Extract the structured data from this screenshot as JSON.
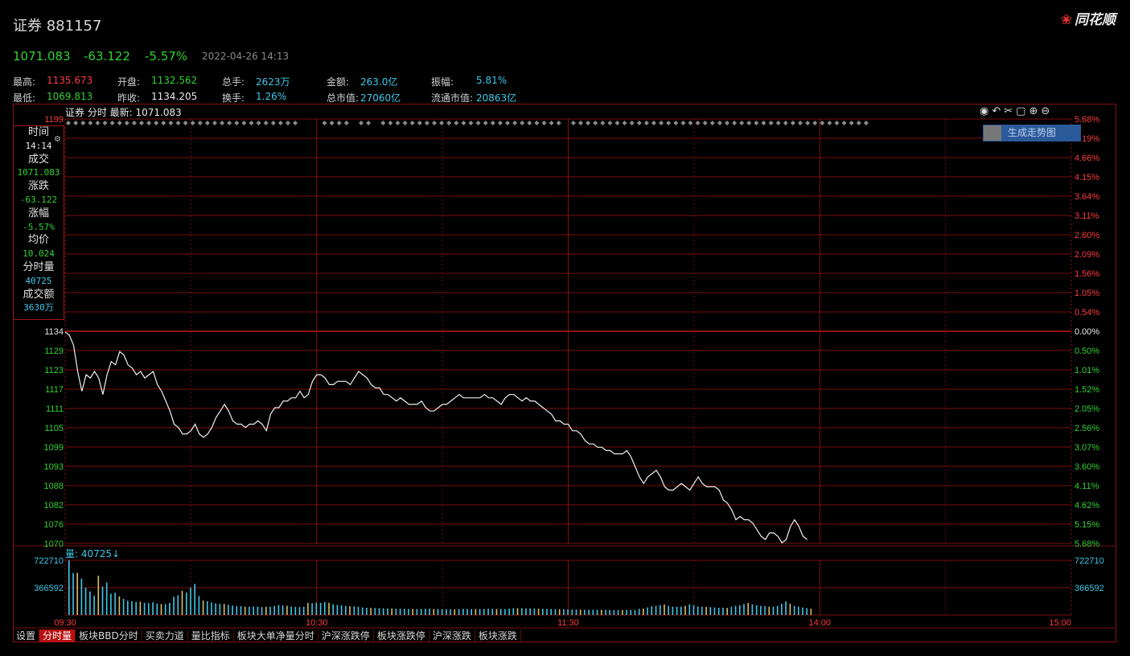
{
  "header": {
    "title": "证券 881157",
    "brand": "同花顺",
    "brand_icon": "flower-logo-icon"
  },
  "quote": {
    "price": "1071.083",
    "change": "-63.122",
    "pct": "-5.57%",
    "datetime": "2022-04-26 14:13"
  },
  "stats": [
    {
      "label": "最高:",
      "value": "1135.673",
      "color": "#ff3b3b"
    },
    {
      "label": "开盘:",
      "value": "1132.562",
      "color": "#32d232"
    },
    {
      "label": "总手:",
      "value": "2623万",
      "color": "#3ec8e8"
    },
    {
      "label": "金额:",
      "value": "263.0亿",
      "color": "#3ec8e8"
    },
    {
      "label": "振幅:",
      "value": "5.81%",
      "color": "#3ec8e8"
    },
    {
      "label": "最低:",
      "value": "1069.813",
      "color": "#32d232"
    },
    {
      "label": "昨收:",
      "value": "1134.205",
      "color": "#e8e8e8"
    },
    {
      "label": "换手:",
      "value": "1.26%",
      "color": "#3ec8e8"
    },
    {
      "label": "总市值:",
      "value": "27060亿",
      "color": "#3ec8e8"
    },
    {
      "label": "流通市值:",
      "value": "20863亿",
      "color": "#3ec8e8"
    }
  ],
  "chart_caption": "证券 分时 最新: 1071.083",
  "gen_button": "生成走势图",
  "toolbar_icons": [
    "eye-icon",
    "undo-icon",
    "scissors-icon",
    "lock-icon",
    "zoom-in-icon",
    "zoom-out-icon"
  ],
  "infobox": [
    {
      "label": "时间",
      "value": "14:14",
      "color": "#e8e8e8"
    },
    {
      "label": "成交",
      "value": "1071.083",
      "color": "#32d232"
    },
    {
      "label": "涨跌",
      "value": "-63.122",
      "color": "#32d232"
    },
    {
      "label": "涨幅",
      "value": "-5.57%",
      "color": "#32d232"
    },
    {
      "label": "均价",
      "value": "10.024",
      "color": "#32d232"
    },
    {
      "label": "分时量",
      "value": "40725",
      "color": "#3ec8e8"
    },
    {
      "label": "成交额",
      "value": "3630万",
      "color": "#3ec8e8"
    }
  ],
  "volume_caption": "量: 40725↓",
  "tabs": [
    {
      "label": "设置",
      "active": false
    },
    {
      "label": "分时量",
      "active": true
    },
    {
      "label": "板块BBD分时",
      "active": false
    },
    {
      "label": "买卖力道",
      "active": false
    },
    {
      "label": "量比指标",
      "active": false
    },
    {
      "label": "板块大单净量分时",
      "active": false
    },
    {
      "label": "沪深涨跌停",
      "active": false
    },
    {
      "label": "板块涨跌停",
      "active": false
    },
    {
      "label": "沪深涨跌",
      "active": false
    },
    {
      "label": "板块涨跌",
      "active": false
    }
  ],
  "chart_data": {
    "type": "line",
    "prev_close": 1134.205,
    "price_left_ticks": [
      "1199",
      "1134",
      "1129",
      "1123",
      "1117",
      "1111",
      "1105",
      "1099",
      "1093",
      "1088",
      "1082",
      "1076",
      "1070"
    ],
    "pct_right_ticks": [
      "5.68%",
      "5.19%",
      "4.66%",
      "4.15%",
      "3.64%",
      "3.11%",
      "2.60%",
      "2.09%",
      "1.56%",
      "1.05%",
      "0.54%",
      "0.00%",
      "0.50%",
      "1.01%",
      "1.52%",
      "2.05%",
      "2.56%",
      "3.07%",
      "3.60%",
      "4.11%",
      "4.62%",
      "5.15%",
      "5.68%"
    ],
    "volume_ticks": [
      "722710",
      "366592"
    ],
    "time_ticks": [
      "09:30",
      "10:30",
      "11:30",
      "14:00",
      "15:00"
    ],
    "ylim": [
      1069.8,
      1134.2
    ],
    "series": [
      {
        "values": [
          1134,
          1133,
          1130,
          1122,
          1116,
          1121,
          1120,
          1122,
          1120,
          1115,
          1121,
          1125,
          1124,
          1128,
          1127,
          1124,
          1123,
          1121,
          1122,
          1120,
          1121,
          1122,
          1118,
          1116,
          1113,
          1110,
          1106,
          1105,
          1103,
          1103,
          1104,
          1106,
          1103,
          1102,
          1103,
          1105,
          1108,
          1110,
          1112,
          1110,
          1107,
          1106,
          1106,
          1105,
          1106,
          1106,
          1107,
          1106,
          1104,
          1109,
          1111,
          1111,
          1113,
          1113,
          1114,
          1114,
          1116,
          1114,
          1115,
          1119,
          1121,
          1121,
          1120,
          1118,
          1118,
          1119,
          1119,
          1119,
          1118,
          1120,
          1122,
          1121,
          1120,
          1118,
          1117,
          1117,
          1115,
          1115,
          1114,
          1113,
          1114,
          1113,
          1112,
          1112,
          1112,
          1113,
          1111,
          1110,
          1110,
          1111,
          1112,
          1112,
          1113,
          1114,
          1115,
          1114,
          1114,
          1114,
          1114,
          1114,
          1115,
          1114,
          1114,
          1113,
          1112,
          1114,
          1115,
          1115,
          1114,
          1113,
          1114,
          1113,
          1113,
          1112,
          1111,
          1110,
          1109,
          1107,
          1107,
          1106,
          1106,
          1104,
          1104,
          1103,
          1101,
          1100,
          1100,
          1099,
          1099,
          1098,
          1098,
          1097,
          1097,
          1097,
          1098,
          1096,
          1093,
          1090,
          1088,
          1090,
          1091,
          1092,
          1090,
          1087,
          1086,
          1086,
          1087,
          1088,
          1087,
          1086,
          1088,
          1090,
          1088,
          1087,
          1087,
          1087,
          1086,
          1083,
          1082,
          1080,
          1077,
          1078,
          1077,
          1077,
          1076,
          1074,
          1072,
          1071,
          1073,
          1073,
          1072,
          1070,
          1071,
          1075,
          1077,
          1075,
          1072,
          1071
        ]
      }
    ],
    "volume": [
      722710,
      556000,
      556000,
      480000,
      362000,
      312000,
      256000,
      520000,
      376000,
      430000,
      282000,
      294000,
      247000,
      213000,
      189000,
      182000,
      172000,
      176000,
      162000,
      156000,
      168000,
      150000,
      146000,
      142000,
      160000,
      240000,
      260000,
      320000,
      296000,
      362000,
      410000,
      250000,
      190000,
      182000,
      166000,
      154000,
      148000,
      146000,
      134000,
      124000,
      118000,
      116000,
      110000,
      108000,
      112000,
      110000,
      104000,
      108000,
      110000,
      120000,
      132000,
      126000,
      122000,
      112000,
      106000,
      104000,
      110000,
      160000,
      156000,
      164000,
      160000,
      170000,
      162000,
      142000,
      134000,
      128000,
      120000,
      116000,
      114000,
      110000,
      100000,
      96000,
      94000,
      92000,
      90000,
      88000,
      86000,
      86000,
      84000,
      84000,
      82000,
      80000,
      80000,
      78000,
      78000,
      82000,
      84000,
      80000,
      80000,
      78000,
      76000,
      76000,
      74000,
      76000,
      82000,
      80000,
      78000,
      80000,
      80000,
      80000,
      84000,
      82000,
      80000,
      80000,
      78000,
      84000,
      90000,
      90000,
      90000,
      86000,
      88000,
      86000,
      84000,
      82000,
      80000,
      80000,
      78000,
      76000,
      76000,
      74000,
      72000,
      72000,
      70000,
      70000,
      70000,
      70000,
      68000,
      68000,
      68000,
      66000,
      66000,
      66000,
      66000,
      66000,
      66000,
      66000,
      82000,
      86000,
      100000,
      116000,
      120000,
      130000,
      140000,
      120000,
      110000,
      110000,
      110000,
      120000,
      140000,
      130000,
      114000,
      110000,
      106000,
      104000,
      100000,
      96000,
      96000,
      94000,
      110000,
      120000,
      130000,
      146000,
      160000,
      140000,
      130000,
      120000,
      116000,
      110000,
      112000,
      120000,
      150000,
      180000,
      150000,
      120000,
      110000,
      100000,
      90000,
      82000
    ]
  }
}
